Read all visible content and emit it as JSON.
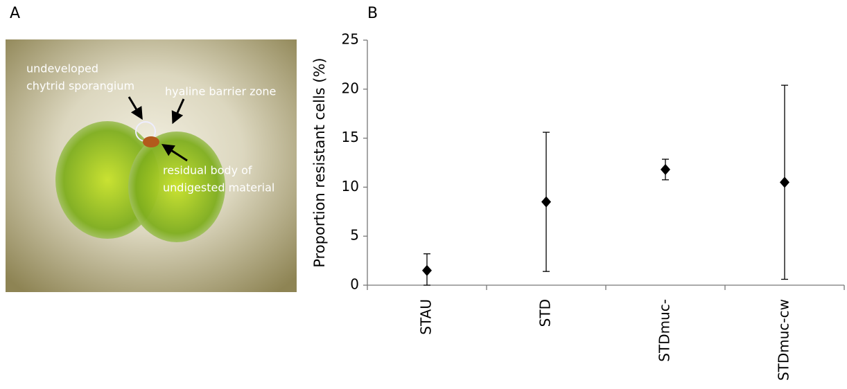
{
  "panel_labels": [
    "A",
    "B"
  ],
  "photo_annotations": [
    "undeveloped",
    "chytrid sporangium",
    "hyaline barrier zone",
    "residual body of",
    "undigested material"
  ],
  "chart_data": {
    "type": "errorbar",
    "y_label": "Proportion resistant cells (%)",
    "categories": [
      "STAU",
      "STD",
      "STDmuc-",
      "STDmuc-cw"
    ],
    "values": [
      1.5,
      8.5,
      11.8,
      10.5
    ],
    "errors": [
      1.7,
      7.1,
      1.05,
      9.9
    ],
    "color": "#000000",
    "ylim": [
      0,
      25
    ],
    "yticks": [
      0,
      5,
      10,
      15,
      20,
      25
    ],
    "grid": false
  }
}
